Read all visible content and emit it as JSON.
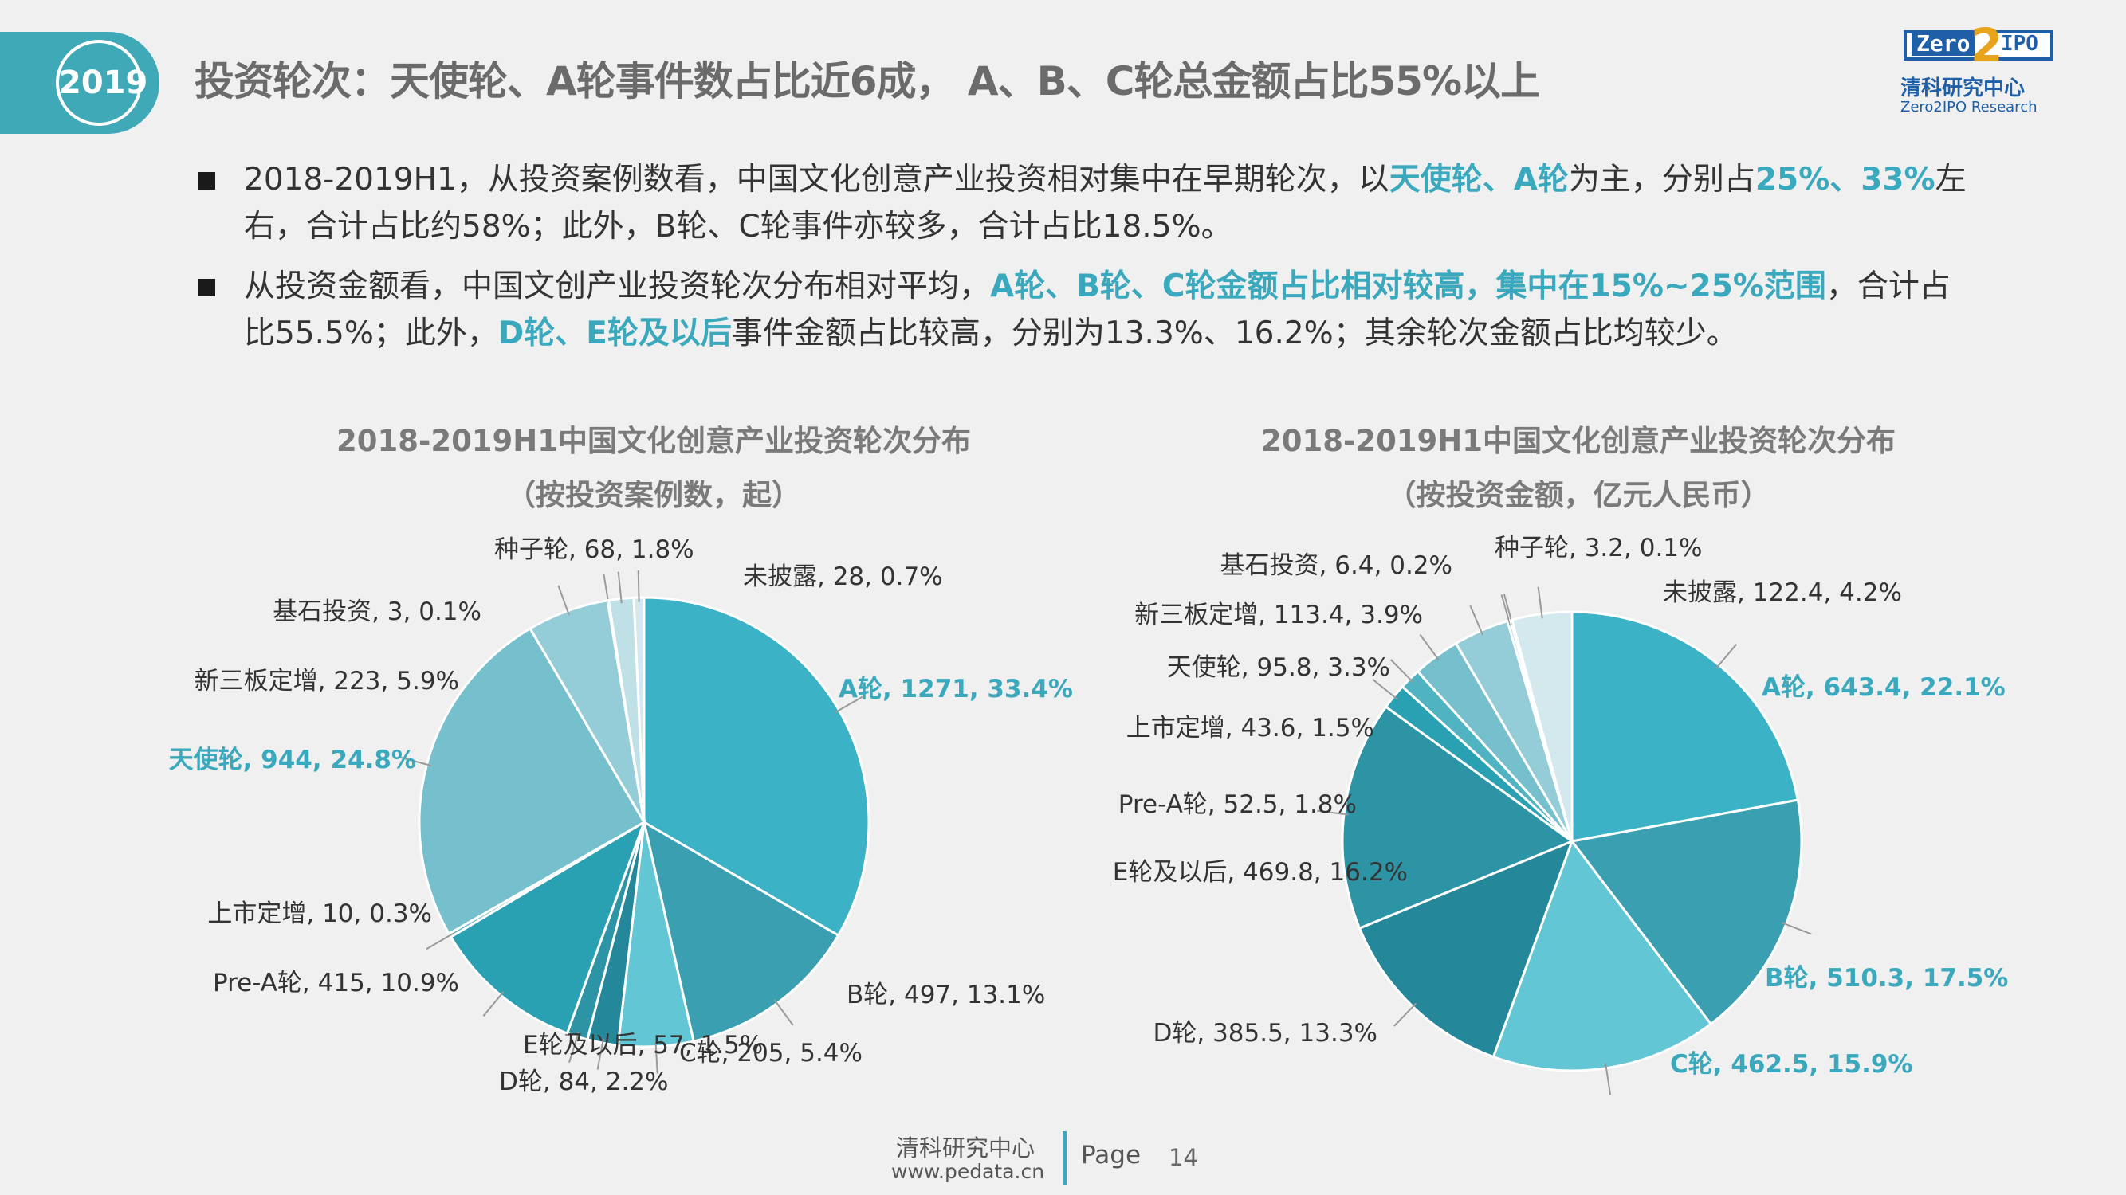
{
  "header": {
    "year": "2019",
    "title": "投资轮次：天使轮、A轮事件数占比近6成， A、B、C轮总金额占比55%以上"
  },
  "logo": {
    "zero": "Zero",
    "two": "2",
    "ipo": "IPO",
    "cn": "清科研究中心",
    "en": "Zero2IPO Research"
  },
  "bullets": [
    {
      "p1": "2018-2019H1，从投资案例数看，中国文化创意产业投资相对集中在早期轮次，以",
      "h1": "天使轮、A轮",
      "p2": "为主，分别占",
      "h2": "25%、33%",
      "p3": "左右，合计占比约58%；此外，B轮、C轮事件亦较多，合计占比18.5%。"
    },
    {
      "p1": "从投资金额看，中国文创产业投资轮次分布相对平均，",
      "h1": "A轮、B轮、C轮金额占比相对较高，集中在15%~25%范围",
      "p2": "，合计占比55.5%；此外，",
      "h2": "D轮、E轮及以后",
      "p3": "事件金额占比较高，分别为13.3%、16.2%；其余轮次金额占比均较少。"
    }
  ],
  "colors": {
    "accent": "#3aa8bd",
    "year_tab": "#3fa9b8",
    "logo_blue": "#1e5fa8",
    "logo_orange": "#e8a31d"
  },
  "chart_data": [
    {
      "type": "pie",
      "title": "2018-2019H1中国文化创意产业投资轮次分布",
      "subtitle": "（按投资案例数，起）",
      "slices": [
        {
          "name": "A轮",
          "value": 1271,
          "pct": "33.4%",
          "label": "A轮, 1271, 33.4%",
          "color": "#3bb2c6",
          "highlight": true
        },
        {
          "name": "B轮",
          "value": 497,
          "pct": "13.1%",
          "label": "B轮, 497, 13.1%",
          "color": "#3a9fb0",
          "highlight": false
        },
        {
          "name": "C轮",
          "value": 205,
          "pct": "5.4%",
          "label": "C轮, 205, 5.4%",
          "color": "#63c6d5",
          "highlight": false
        },
        {
          "name": "D轮",
          "value": 84,
          "pct": "2.2%",
          "label": "D轮, 84, 2.2%",
          "color": "#25879a",
          "highlight": false
        },
        {
          "name": "E轮及以后",
          "value": 57,
          "pct": "1.5%",
          "label": "E轮及以后, 57, 1.5%",
          "color": "#2d94a6",
          "highlight": false
        },
        {
          "name": "Pre-A轮",
          "value": 415,
          "pct": "10.9%",
          "label": "Pre-A轮, 415, 10.9%",
          "color": "#2aa0b3",
          "highlight": false
        },
        {
          "name": "上市定增",
          "value": 10,
          "pct": "0.3%",
          "label": "上市定增, 10, 0.3%",
          "color": "#4fb3c2",
          "highlight": false
        },
        {
          "name": "天使轮",
          "value": 944,
          "pct": "24.8%",
          "label": "天使轮, 944, 24.8%",
          "color": "#76bfcc",
          "highlight": true
        },
        {
          "name": "新三板定增",
          "value": 223,
          "pct": "5.9%",
          "label": "新三板定增, 223, 5.9%",
          "color": "#94cdd8",
          "highlight": false
        },
        {
          "name": "基石投资",
          "value": 3,
          "pct": "0.1%",
          "label": "基石投资, 3, 0.1%",
          "color": "#a9d7df",
          "highlight": false
        },
        {
          "name": "种子轮",
          "value": 68,
          "pct": "1.8%",
          "label": "种子轮, 68, 1.8%",
          "color": "#bfe0e6",
          "highlight": false
        },
        {
          "name": "未披露",
          "value": 28,
          "pct": "0.7%",
          "label": "未披露, 28, 0.7%",
          "color": "#d3e9ed",
          "highlight": false
        }
      ]
    },
    {
      "type": "pie",
      "title": "2018-2019H1中国文化创意产业投资轮次分布",
      "subtitle": "（按投资金额，亿元人民币）",
      "slices": [
        {
          "name": "A轮",
          "value": 643.4,
          "pct": "22.1%",
          "label": "A轮, 643.4, 22.1%",
          "color": "#3bb2c6",
          "highlight": true
        },
        {
          "name": "B轮",
          "value": 510.3,
          "pct": "17.5%",
          "label": "B轮, 510.3, 17.5%",
          "color": "#3a9fb0",
          "highlight": true
        },
        {
          "name": "C轮",
          "value": 462.5,
          "pct": "15.9%",
          "label": "C轮, 462.5, 15.9%",
          "color": "#63c6d5",
          "highlight": true
        },
        {
          "name": "D轮",
          "value": 385.5,
          "pct": "13.3%",
          "label": "D轮, 385.5, 13.3%",
          "color": "#25879a",
          "highlight": false
        },
        {
          "name": "E轮及以后",
          "value": 469.8,
          "pct": "16.2%",
          "label": "E轮及以后, 469.8, 16.2%",
          "color": "#2d94a6",
          "highlight": false
        },
        {
          "name": "Pre-A轮",
          "value": 52.5,
          "pct": "1.8%",
          "label": "Pre-A轮, 52.5, 1.8%",
          "color": "#2aa0b3",
          "highlight": false
        },
        {
          "name": "上市定增",
          "value": 43.6,
          "pct": "1.5%",
          "label": "上市定增, 43.6, 1.5%",
          "color": "#4fb3c2",
          "highlight": false
        },
        {
          "name": "天使轮",
          "value": 95.8,
          "pct": "3.3%",
          "label": "天使轮, 95.8, 3.3%",
          "color": "#76bfcc",
          "highlight": false
        },
        {
          "name": "新三板定增",
          "value": 113.4,
          "pct": "3.9%",
          "label": "新三板定增, 113.4, 3.9%",
          "color": "#94cdd8",
          "highlight": false
        },
        {
          "name": "基石投资",
          "value": 6.4,
          "pct": "0.2%",
          "label": "基石投资, 6.4, 0.2%",
          "color": "#a9d7df",
          "highlight": false
        },
        {
          "name": "种子轮",
          "value": 3.2,
          "pct": "0.1%",
          "label": "种子轮, 3.2, 0.1%",
          "color": "#bfe0e6",
          "highlight": false
        },
        {
          "name": "未披露",
          "value": 122.4,
          "pct": "4.2%",
          "label": "未披露, 122.4, 4.2%",
          "color": "#d3e9ed",
          "highlight": false
        }
      ]
    }
  ],
  "footer": {
    "org": "清科研究中心",
    "url": "www.pedata.cn",
    "page_label": "Page",
    "page_number": "14"
  }
}
